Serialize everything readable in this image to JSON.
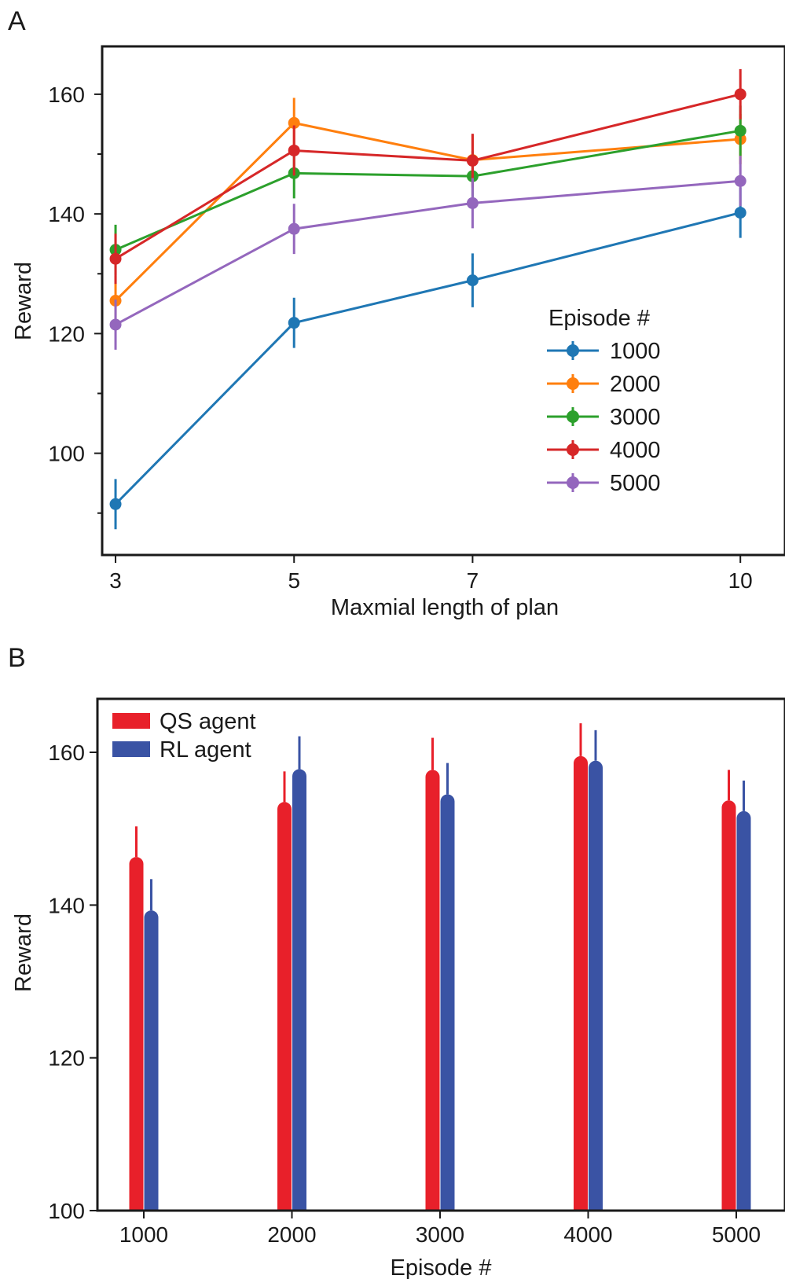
{
  "chart_data": [
    {
      "panel_label": "A",
      "type": "line",
      "title": "",
      "xlabel": "Maxmial length of plan",
      "ylabel": "Reward",
      "x": [
        3,
        5,
        7,
        10
      ],
      "x_tick_labels": [
        "3",
        "5",
        "7",
        "10"
      ],
      "xlim": [
        2.85,
        10.5
      ],
      "ylim": [
        83,
        168
      ],
      "y_ticks": [
        100,
        120,
        140,
        160
      ],
      "y_tick_labels": [
        "100",
        "120",
        "140",
        "160"
      ],
      "y_minor_ticks": [
        90,
        110,
        130,
        150
      ],
      "grid": false,
      "legend": {
        "title": "Episode #",
        "placement": "lower-right"
      },
      "series": [
        {
          "name": "1000",
          "color": "#1f77b4",
          "values": [
            91.5,
            121.8,
            128.9,
            140.2
          ],
          "errors": [
            4.2,
            4.2,
            4.5,
            4.2
          ]
        },
        {
          "name": "2000",
          "color": "#ff7f0e",
          "values": [
            125.5,
            155.2,
            149.0,
            152.5
          ],
          "errors": [
            4.2,
            4.2,
            4.2,
            4.2
          ]
        },
        {
          "name": "3000",
          "color": "#2ca02c",
          "values": [
            134.0,
            146.8,
            146.3,
            153.9
          ],
          "errors": [
            4.2,
            4.2,
            4.2,
            4.2
          ]
        },
        {
          "name": "4000",
          "color": "#d62728",
          "values": [
            132.5,
            150.6,
            148.9,
            160.0
          ],
          "errors": [
            4.2,
            4.2,
            4.5,
            4.2
          ]
        },
        {
          "name": "5000",
          "color": "#9467bd",
          "values": [
            121.5,
            137.5,
            141.8,
            145.5
          ],
          "errors": [
            4.2,
            4.2,
            4.2,
            4.2
          ]
        }
      ]
    },
    {
      "panel_label": "B",
      "type": "bar",
      "title": "",
      "xlabel": "Episode #",
      "ylabel": "Reward",
      "categories": [
        "1000",
        "2000",
        "3000",
        "4000",
        "5000"
      ],
      "ylim": [
        100,
        167
      ],
      "y_ticks": [
        100,
        120,
        140,
        160
      ],
      "y_tick_labels": [
        "100",
        "120",
        "140",
        "160"
      ],
      "grid": false,
      "legend": {
        "placement": "top-left"
      },
      "series": [
        {
          "name": "QS agent",
          "color": "#e8202a",
          "values": [
            146.3,
            153.5,
            157.7,
            159.5,
            153.7
          ],
          "errors": [
            4.0,
            4.0,
            4.2,
            4.3,
            4.0
          ]
        },
        {
          "name": "RL agent",
          "color": "#3a53a4",
          "values": [
            139.3,
            157.8,
            154.5,
            158.9,
            152.3
          ],
          "errors": [
            4.1,
            4.3,
            4.1,
            4.0,
            4.0
          ]
        }
      ]
    }
  ]
}
